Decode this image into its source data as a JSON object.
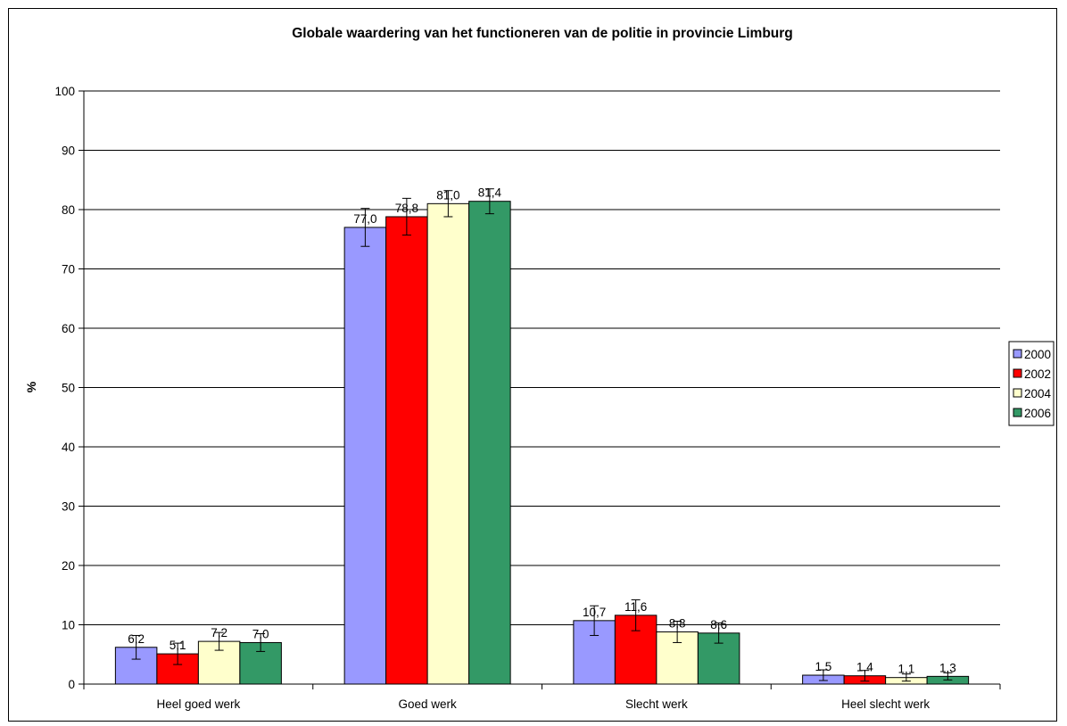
{
  "chart_data": {
    "type": "bar",
    "title": "Globale waardering van het functioneren van de politie in provincie Limburg",
    "xlabel": "",
    "ylabel": "%",
    "ylim": [
      0,
      100
    ],
    "ytick_step": 10,
    "grid": true,
    "legend_position": "right",
    "categories": [
      "Heel goed werk",
      "Goed werk",
      "Slecht werk",
      "Heel slecht werk"
    ],
    "series": [
      {
        "name": "2000",
        "color": "#9999ff",
        "values": [
          6.2,
          77.0,
          10.7,
          1.5
        ],
        "labels": [
          "6,2",
          "77,0",
          "10,7",
          "1,5"
        ],
        "errors": [
          2.0,
          3.2,
          2.5,
          0.9
        ]
      },
      {
        "name": "2002",
        "color": "#ff0000",
        "values": [
          5.1,
          78.8,
          11.6,
          1.4
        ],
        "labels": [
          "5,1",
          "78,8",
          "11,6",
          "1,4"
        ],
        "errors": [
          1.8,
          3.1,
          2.6,
          0.9
        ]
      },
      {
        "name": "2004",
        "color": "#ffffcc",
        "values": [
          7.2,
          81.0,
          8.8,
          1.1
        ],
        "labels": [
          "7,2",
          "81,0",
          "8,8",
          "1,1"
        ],
        "errors": [
          1.5,
          2.2,
          1.8,
          0.6
        ]
      },
      {
        "name": "2006",
        "color": "#339966",
        "values": [
          7.0,
          81.4,
          8.6,
          1.3
        ],
        "labels": [
          "7,0",
          "81,4",
          "8,6",
          "1,3"
        ],
        "errors": [
          1.5,
          2.1,
          1.7,
          0.6
        ]
      }
    ]
  }
}
